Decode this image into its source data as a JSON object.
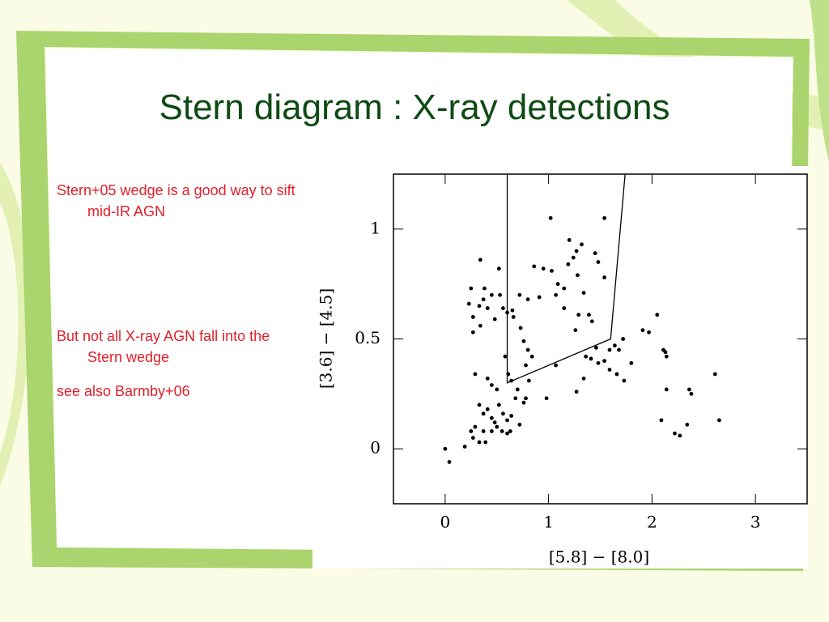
{
  "slide": {
    "title": "Stern diagram : X-ray detections",
    "notes": [
      "Stern+05 wedge is a good way to sift mid-IR AGN",
      "But not all X-ray AGN fall into the Stern wedge",
      "see also Barmby+06"
    ]
  },
  "chart_data": {
    "type": "scatter",
    "x_label": "[5.8] − [8.0]",
    "y_label": "[3.6] − [4.5]",
    "xlim": [
      -0.5,
      3.5
    ],
    "ylim": [
      -0.25,
      1.25
    ],
    "xticks": [
      0,
      1,
      2,
      3
    ],
    "yticks": [
      0,
      0.5,
      1
    ],
    "color": "#000000",
    "wedge": {
      "x": [
        0.6,
        0.6,
        1.6,
        1.74
      ],
      "y": [
        1.25,
        0.3,
        0.5,
        1.25
      ]
    },
    "x": [
      0,
      0.04,
      0.19,
      0.23,
      0.25,
      0.27,
      0.27,
      0.29,
      0.34,
      0.33,
      0.37,
      0.41,
      0.38,
      0.34,
      0.45,
      0.48,
      0.52,
      0.53,
      0.56,
      0.6,
      0.65,
      0.66,
      0.72,
      0.8,
      0.91,
      0.86,
      0.95,
      1.03,
      1.02,
      1.07,
      1.15,
      1.2,
      1.24,
      1.27,
      1.19,
      1.28,
      1.32,
      1.34,
      1.29,
      1.39,
      1.45,
      1.48,
      1.54,
      1.54,
      1.42,
      1.26,
      0.41,
      0.45,
      0.5,
      0.58,
      0.61,
      0.64,
      0.68,
      0.7,
      0.73,
      0.76,
      0.78,
      0.8,
      0.84,
      0.81,
      0.76,
      0.78,
      0.33,
      0.37,
      0.41,
      0.45,
      0.48,
      0.52,
      0.56,
      0.6,
      0.63,
      0.64,
      0.72,
      0.29,
      0.27,
      0.33,
      0.37,
      0.39,
      0.25,
      0.45,
      0.5,
      0.55,
      0.6,
      0.98,
      1.07,
      1.27,
      1.34,
      1.36,
      1.41,
      1.46,
      1.48,
      1.54,
      1.59,
      1.64,
      1.68,
      1.72,
      1.73,
      1.8,
      1.66,
      1.59,
      1.91,
      1.97,
      2.05,
      2.11,
      2.14,
      2.13,
      2.14,
      2.09,
      2.22,
      2.27,
      2.34,
      2.36,
      2.38,
      2.61,
      2.65,
      1.15,
      1.09
    ],
    "y": [
      0,
      -0.06,
      0.01,
      0.66,
      0.73,
      0.6,
      0.53,
      0.34,
      0.86,
      0.65,
      0.68,
      0.64,
      0.73,
      0.56,
      0.7,
      0.59,
      0.82,
      0.7,
      0.64,
      0.62,
      0.63,
      0.6,
      0.7,
      0.68,
      0.69,
      0.83,
      0.82,
      0.81,
      1.05,
      0.7,
      0.73,
      0.95,
      0.87,
      0.9,
      0.84,
      0.79,
      0.93,
      0.71,
      0.61,
      0.61,
      0.89,
      0.85,
      1.05,
      0.78,
      0.58,
      0.54,
      0.32,
      0.29,
      0.27,
      0.42,
      0.34,
      0.31,
      0.23,
      0.27,
      0.55,
      0.49,
      0.38,
      0.45,
      0.42,
      0.31,
      0.21,
      0.23,
      0.2,
      0.16,
      0.18,
      0.14,
      0.12,
      0.2,
      0.16,
      0.13,
      0.08,
      0.15,
      0.11,
      0.1,
      0.05,
      0.03,
      0.08,
      0.03,
      0.08,
      0.08,
      0.1,
      0.08,
      0.07,
      0.23,
      0.38,
      0.26,
      0.32,
      0.42,
      0.41,
      0.46,
      0.39,
      0.4,
      0.45,
      0.47,
      0.45,
      0.5,
      0.31,
      0.39,
      0.34,
      0.36,
      0.54,
      0.53,
      0.61,
      0.45,
      0.42,
      0.44,
      0.27,
      0.13,
      0.07,
      0.06,
      0.11,
      0.27,
      0.25,
      0.34,
      0.13,
      0.64,
      0.75
    ]
  }
}
